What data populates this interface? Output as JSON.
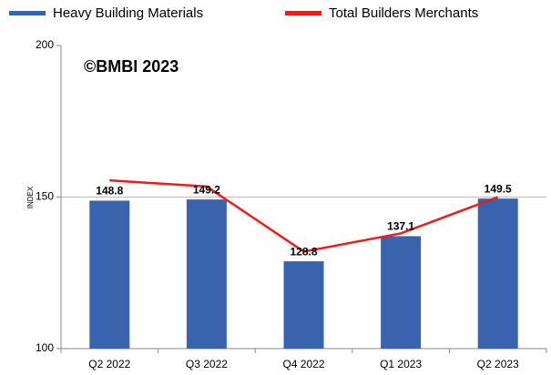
{
  "chart_data": {
    "type": "bar_line",
    "y_axis_label": "INDEX",
    "annotation": "©BMBI 2023",
    "categories": [
      "Q2 2022",
      "Q3 2022",
      "Q4 2022",
      "Q1 2023",
      "Q2 2023"
    ],
    "series": [
      {
        "name": "Heavy Building Materials",
        "color": "#3a63ad",
        "type": "bar",
        "values": [
          148.8,
          149.2,
          128.8,
          137.1,
          149.5
        ]
      },
      {
        "name": "Total Builders Merchants",
        "color": "#ee1c1c",
        "type": "line",
        "values": [
          155.5,
          153.5,
          132,
          138,
          150
        ]
      }
    ],
    "ylim": [
      100,
      200
    ],
    "yticks": [
      100,
      150,
      200
    ],
    "grid": true,
    "legend": "top"
  }
}
